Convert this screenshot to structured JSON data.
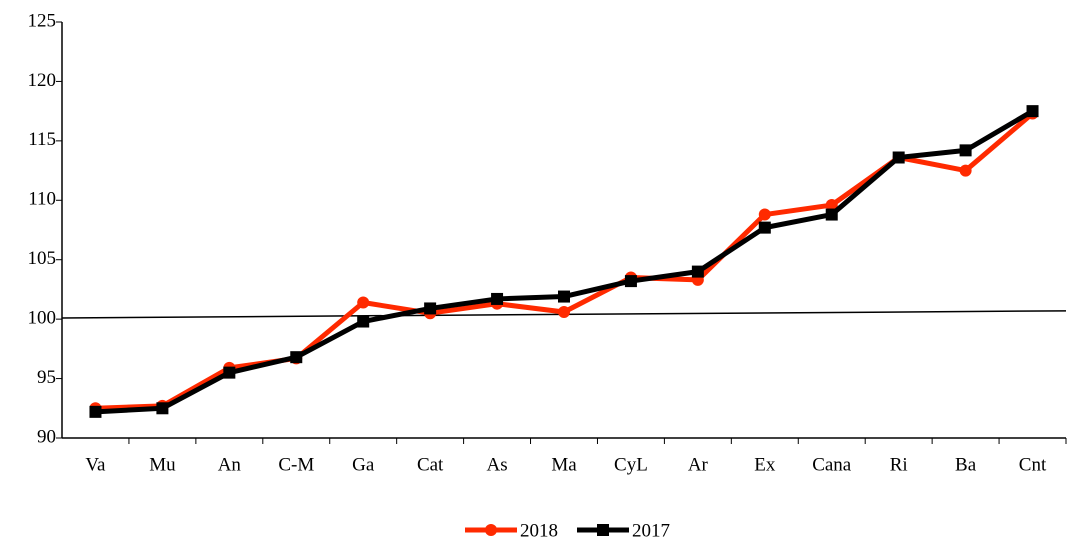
{
  "chart_data": {
    "type": "line",
    "categories": [
      "Va",
      "Mu",
      "An",
      "C-M",
      "Ga",
      "Cat",
      "As",
      "Ma",
      "CyL",
      "Ar",
      "Ex",
      "Cana",
      "Ri",
      "Ba",
      "Cnt"
    ],
    "series": [
      {
        "name": "2018",
        "color": "#ff2a00",
        "marker": "circle",
        "values": [
          92.5,
          92.7,
          95.9,
          96.7,
          101.4,
          100.5,
          101.3,
          100.6,
          103.5,
          103.3,
          108.8,
          109.6,
          113.6,
          112.5,
          117.3
        ]
      },
      {
        "name": "2017",
        "color": "#000000",
        "marker": "square",
        "values": [
          92.2,
          92.5,
          95.5,
          96.8,
          99.8,
          100.9,
          101.7,
          101.9,
          103.2,
          104.0,
          107.7,
          108.8,
          113.6,
          114.2,
          117.5
        ]
      }
    ],
    "reference_line": [
      100.1,
      100.7
    ],
    "ylim": [
      90,
      125
    ],
    "yticks": [
      90,
      95,
      100,
      105,
      110,
      115,
      120,
      125
    ],
    "grid": false,
    "legend": "bottom"
  }
}
